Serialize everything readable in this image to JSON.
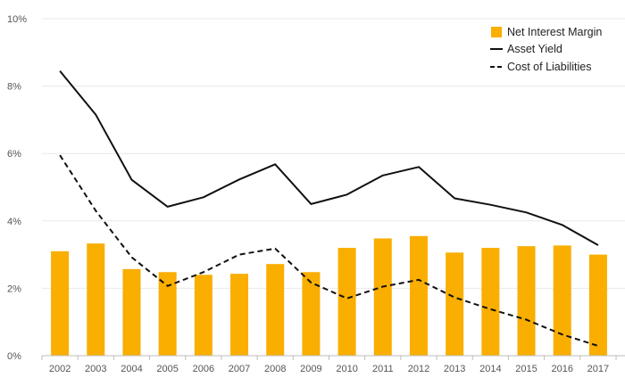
{
  "chart_data": {
    "type": "bar",
    "categories": [
      "2002",
      "2003",
      "2004",
      "2005",
      "2006",
      "2007",
      "2008",
      "2009",
      "2010",
      "2011",
      "2012",
      "2013",
      "2014",
      "2015",
      "2016",
      "2017"
    ],
    "series": [
      {
        "name": "Net Interest Margin",
        "type": "bar",
        "values": [
          3.1,
          3.33,
          2.57,
          2.48,
          2.4,
          2.43,
          2.72,
          2.48,
          3.2,
          3.48,
          3.55,
          3.06,
          3.2,
          3.25,
          3.27,
          3.0
        ]
      },
      {
        "name": "Asset Yield",
        "type": "line",
        "style": "solid",
        "values": [
          8.45,
          7.15,
          5.22,
          4.42,
          4.7,
          5.23,
          5.68,
          4.5,
          4.78,
          5.35,
          5.6,
          4.67,
          4.48,
          4.25,
          3.88,
          3.28
        ]
      },
      {
        "name": "Cost of Liabilities",
        "type": "line",
        "style": "dashed",
        "values": [
          5.95,
          4.3,
          2.92,
          2.07,
          2.48,
          3.0,
          3.18,
          2.17,
          1.7,
          2.05,
          2.25,
          1.73,
          1.38,
          1.07,
          0.63,
          0.29
        ]
      }
    ],
    "ylim": [
      0,
      10
    ],
    "yticks": [
      "0%",
      "2%",
      "4%",
      "6%",
      "8%",
      "10%"
    ],
    "ytick_values": [
      0,
      2,
      4,
      6,
      8,
      10
    ],
    "grid": true,
    "legend": "top-right",
    "title": "",
    "xlabel": "",
    "ylabel": ""
  },
  "colors": {
    "bar": "#f9ae00",
    "line": "#111111"
  }
}
